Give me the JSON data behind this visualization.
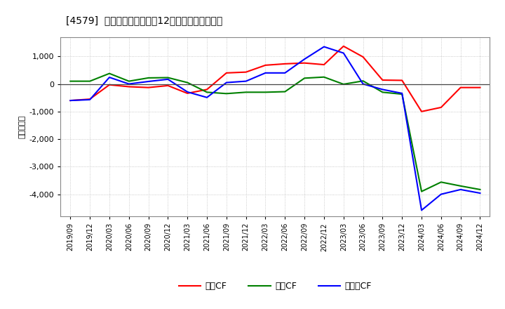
{
  "title": "[4579]  キャッシュフローの12か月移動合計の推移",
  "ylabel": "（百万円）",
  "background_color": "#ffffff",
  "plot_bg_color": "#ffffff",
  "grid_color": "#aaaaaa",
  "x_labels": [
    "2019/09",
    "2019/12",
    "2020/03",
    "2020/06",
    "2020/09",
    "2020/12",
    "2021/03",
    "2021/06",
    "2021/09",
    "2021/12",
    "2022/03",
    "2022/06",
    "2022/09",
    "2022/12",
    "2023/03",
    "2023/06",
    "2023/09",
    "2023/12",
    "2024/03",
    "2024/06",
    "2024/09",
    "2024/12"
  ],
  "operating_cf": [
    -600,
    -550,
    -30,
    -100,
    -130,
    -60,
    -340,
    -200,
    400,
    430,
    680,
    730,
    760,
    700,
    1370,
    980,
    140,
    130,
    -1000,
    -850,
    -130,
    -130
  ],
  "investing_cf": [
    100,
    100,
    380,
    100,
    220,
    230,
    50,
    -300,
    -350,
    -300,
    -300,
    -280,
    210,
    250,
    -10,
    110,
    -300,
    -370,
    -3900,
    -3560,
    -3700,
    -3830
  ],
  "free_cf": [
    -600,
    -570,
    240,
    0,
    90,
    170,
    -290,
    -490,
    50,
    100,
    400,
    400,
    900,
    1350,
    1120,
    0,
    -200,
    -340,
    -4580,
    -4000,
    -3830,
    -3960
  ],
  "ylim": [
    -4800,
    1700
  ],
  "yticks": [
    -4000,
    -3000,
    -2000,
    -1000,
    0,
    1000
  ],
  "line_colors": {
    "operating": "#ff0000",
    "investing": "#008000",
    "free": "#0000ff"
  },
  "legend_labels": [
    "営業CF",
    "投資CF",
    "フリーCF"
  ]
}
